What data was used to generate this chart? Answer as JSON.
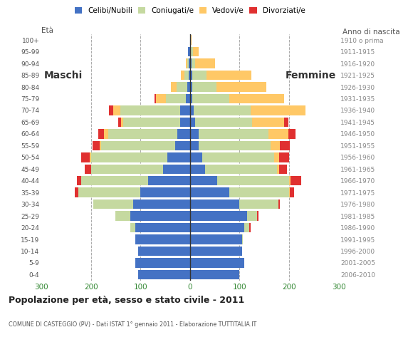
{
  "age_groups": [
    "0-4",
    "5-9",
    "10-14",
    "15-19",
    "20-24",
    "25-29",
    "30-34",
    "35-39",
    "40-44",
    "45-49",
    "50-54",
    "55-59",
    "60-64",
    "65-69",
    "70-74",
    "75-79",
    "80-84",
    "85-89",
    "90-94",
    "95-99",
    "100+"
  ],
  "birth_years": [
    "2006-2010",
    "2001-2005",
    "1996-2000",
    "1991-1995",
    "1986-1990",
    "1981-1985",
    "1976-1980",
    "1971-1975",
    "1966-1970",
    "1961-1965",
    "1956-1960",
    "1951-1955",
    "1946-1950",
    "1941-1945",
    "1936-1940",
    "1931-1935",
    "1926-1930",
    "1921-1925",
    "1916-1920",
    "1911-1915",
    "1910 o prima"
  ],
  "colors": {
    "celibe": "#4472c4",
    "coniugato": "#c5d9a0",
    "vedovo": "#ffc866",
    "divorziato": "#e03030"
  },
  "males": {
    "celibe": [
      105,
      110,
      105,
      110,
      110,
      120,
      115,
      100,
      85,
      55,
      45,
      30,
      25,
      20,
      20,
      8,
      5,
      3,
      2,
      4,
      0
    ],
    "coniugato": [
      0,
      0,
      0,
      0,
      10,
      30,
      80,
      125,
      135,
      145,
      155,
      150,
      140,
      115,
      120,
      40,
      22,
      8,
      3,
      0,
      0
    ],
    "vedovo": [
      0,
      0,
      0,
      0,
      0,
      0,
      0,
      0,
      0,
      0,
      2,
      2,
      8,
      4,
      15,
      20,
      12,
      8,
      3,
      0,
      0
    ],
    "divorziato": [
      0,
      0,
      0,
      0,
      0,
      0,
      0,
      8,
      8,
      12,
      18,
      15,
      12,
      6,
      8,
      4,
      0,
      0,
      0,
      0,
      0
    ]
  },
  "females": {
    "celibe": [
      100,
      110,
      105,
      105,
      110,
      115,
      100,
      80,
      55,
      30,
      25,
      18,
      18,
      10,
      8,
      5,
      4,
      4,
      3,
      2,
      0
    ],
    "coniugato": [
      0,
      0,
      0,
      2,
      10,
      20,
      78,
      120,
      145,
      145,
      145,
      145,
      140,
      115,
      115,
      75,
      50,
      30,
      8,
      4,
      0
    ],
    "vedovo": [
      0,
      0,
      0,
      0,
      0,
      0,
      0,
      2,
      3,
      5,
      10,
      18,
      40,
      65,
      110,
      110,
      100,
      90,
      40,
      12,
      3
    ],
    "divorziato": [
      0,
      0,
      0,
      0,
      2,
      3,
      3,
      8,
      22,
      15,
      20,
      20,
      15,
      8,
      0,
      0,
      0,
      0,
      0,
      0,
      0
    ]
  },
  "title": "Popolazione per età, sesso e stato civile - 2011",
  "subtitle": "COMUNE DI CASTEGGIO (PV) - Dati ISTAT 1° gennaio 2011 - Elaborazione TUTTITALIA.IT",
  "xlabel_left": "Maschi",
  "xlabel_right": "Femmine",
  "ylabel_left": "Età",
  "ylabel_right": "Anno di nascita",
  "xlim": 300,
  "background_color": "#ffffff",
  "grid_color": "#aaaaaa"
}
